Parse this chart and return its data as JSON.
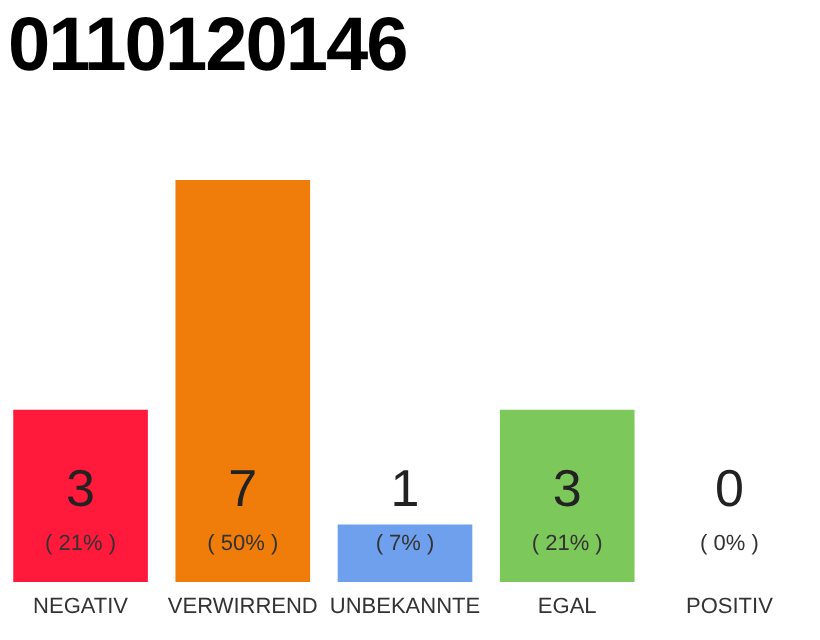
{
  "chart_data": {
    "type": "bar",
    "title": "0110120146",
    "categories": [
      "NEGATIV",
      "VERWIRREND",
      "UNBEKANNTE",
      "EGAL",
      "POSITIV"
    ],
    "values": [
      3,
      7,
      1,
      3,
      0
    ],
    "colors": [
      "#ff1a3c",
      "#f07d0a",
      "#6ea0ee",
      "#7dc85a",
      "#efefef"
    ],
    "ylim": [
      0,
      7
    ],
    "data_labels": true,
    "annotations": [
      "( 21% )",
      "( 50% )",
      "( 7% )",
      "( 21% )",
      "( 0% )"
    ]
  }
}
